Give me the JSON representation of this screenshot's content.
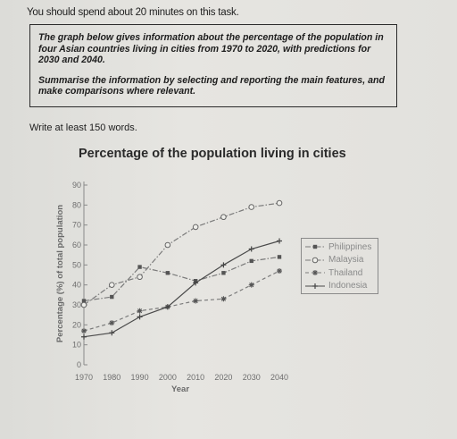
{
  "instruction": "You should spend about 20 minutes on this task.",
  "task": {
    "prompt": "The graph below gives information about the percentage of the population in four Asian countries living in cities from 1970 to 2020, with predictions for 2030 and 2040.",
    "directive": "Summarise the information by selecting and reporting the main features, and make comparisons where relevant."
  },
  "word_note": "Write at least 150 words.",
  "colors": {
    "series": "#8a8a8a",
    "text": "#1d1d1d"
  },
  "chart_data": {
    "type": "line",
    "title": "Percentage of the population living in cities",
    "xlabel": "Year",
    "ylabel": "Percentage (%) of total population",
    "x": [
      1970,
      1980,
      1990,
      2000,
      2010,
      2020,
      2030,
      2040
    ],
    "xlim": [
      1970,
      2040
    ],
    "ylim": [
      0,
      90
    ],
    "yticks": [
      0,
      10,
      20,
      30,
      40,
      50,
      60,
      70,
      80,
      90
    ],
    "grid": false,
    "legend_position": "right",
    "series": [
      {
        "name": "Philippines",
        "marker": "square",
        "dash": "dash-dot",
        "values": [
          32,
          34,
          49,
          46,
          42,
          46,
          52,
          54
        ]
      },
      {
        "name": "Malaysia",
        "marker": "circle",
        "dash": "dash-dot",
        "values": [
          30,
          40,
          44,
          60,
          69,
          74,
          79,
          81
        ]
      },
      {
        "name": "Thailand",
        "marker": "star",
        "dash": "dashed",
        "values": [
          17,
          21,
          27,
          29,
          32,
          33,
          40,
          47
        ]
      },
      {
        "name": "Indonesia",
        "marker": "plus",
        "dash": "solid",
        "values": [
          14,
          16,
          24,
          29,
          41,
          50,
          58,
          62
        ]
      }
    ]
  }
}
